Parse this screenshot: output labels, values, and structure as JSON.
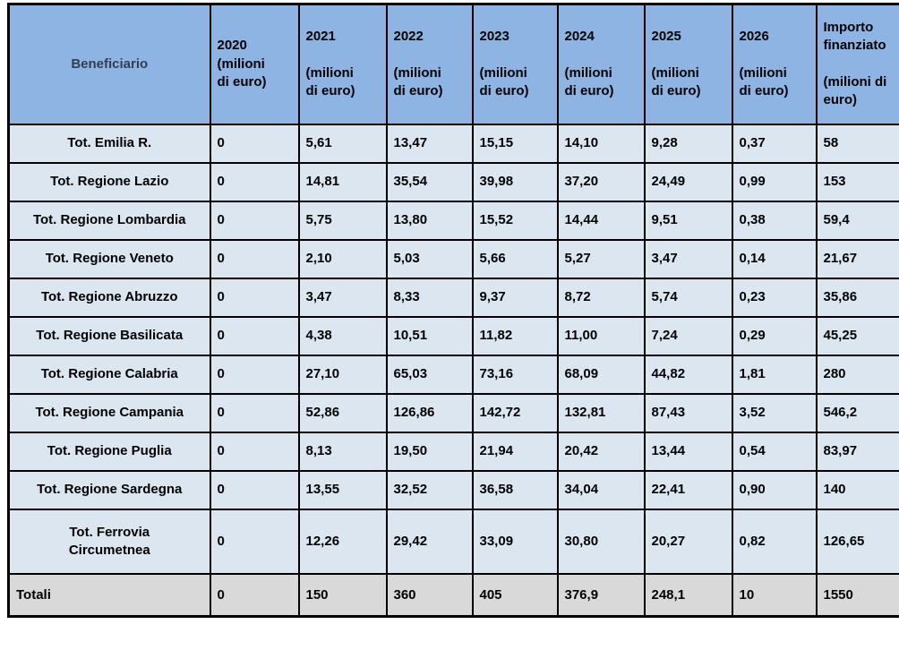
{
  "table": {
    "columns": [
      {
        "key": "beneficiario",
        "label": "Beneficiario"
      },
      {
        "key": "y2020",
        "label": "2020\n(milioni\ndi euro)"
      },
      {
        "key": "y2021",
        "label": "2021\n\n(milioni\ndi euro)"
      },
      {
        "key": "y2022",
        "label": "2022\n\n(milioni\ndi euro)"
      },
      {
        "key": "y2023",
        "label": "2023\n\n(milioni\ndi euro)"
      },
      {
        "key": "y2024",
        "label": "2024\n\n(milioni\ndi euro)"
      },
      {
        "key": "y2025",
        "label": "2025\n\n(milioni\ndi euro)"
      },
      {
        "key": "y2026",
        "label": "2026\n\n(milioni\ndi euro)"
      },
      {
        "key": "importo",
        "label": "Importo\nfinanziato\n\n(milioni di\neuro)"
      }
    ],
    "rows": [
      {
        "label": "Tot. Emilia R.",
        "values": [
          "0",
          "5,61",
          "13,47",
          "15,15",
          "14,10",
          "9,28",
          "0,37",
          "58"
        ]
      },
      {
        "label": "Tot. Regione Lazio",
        "values": [
          "0",
          "14,81",
          "35,54",
          "39,98",
          "37,20",
          "24,49",
          "0,99",
          "153"
        ]
      },
      {
        "label": "Tot. Regione Lombardia",
        "values": [
          "0",
          "5,75",
          "13,80",
          "15,52",
          "14,44",
          "9,51",
          "0,38",
          "59,4"
        ]
      },
      {
        "label": "Tot. Regione Veneto",
        "values": [
          "0",
          "2,10",
          "5,03",
          "5,66",
          "5,27",
          "3,47",
          "0,14",
          "21,67"
        ]
      },
      {
        "label": "Tot. Regione Abruzzo",
        "values": [
          "0",
          "3,47",
          "8,33",
          "9,37",
          "8,72",
          "5,74",
          "0,23",
          "35,86"
        ]
      },
      {
        "label": "Tot. Regione Basilicata",
        "values": [
          "0",
          "4,38",
          "10,51",
          "11,82",
          "11,00",
          "7,24",
          "0,29",
          "45,25"
        ]
      },
      {
        "label": "Tot. Regione Calabria",
        "values": [
          "0",
          "27,10",
          "65,03",
          "73,16",
          "68,09",
          "44,82",
          "1,81",
          "280"
        ]
      },
      {
        "label": "Tot. Regione Campania",
        "values": [
          "0",
          "52,86",
          "126,86",
          "142,72",
          "132,81",
          "87,43",
          "3,52",
          "546,2"
        ]
      },
      {
        "label": "Tot. Regione Puglia",
        "values": [
          "0",
          "8,13",
          "19,50",
          "21,94",
          "20,42",
          "13,44",
          "0,54",
          "83,97"
        ]
      },
      {
        "label": "Tot. Regione Sardegna",
        "values": [
          "0",
          "13,55",
          "32,52",
          "36,58",
          "34,04",
          "22,41",
          "0,90",
          "140"
        ]
      },
      {
        "label": "Tot. Ferrovia\nCircumetnea",
        "values": [
          "0",
          "12,26",
          "29,42",
          "33,09",
          "30,80",
          "20,27",
          "0,82",
          "126,65"
        ]
      }
    ],
    "totals_row": {
      "label": "Totali",
      "values": [
        "0",
        "150",
        "360",
        "405",
        "376,9",
        "248,1",
        "10",
        "1550"
      ]
    }
  },
  "colors": {
    "header_bg": "#8DB4E2",
    "body_bg": "#DCE6F1",
    "totals_bg": "#D9D9D9",
    "border": "#000000",
    "header_label_text": "#333F50",
    "text": "#000000"
  }
}
